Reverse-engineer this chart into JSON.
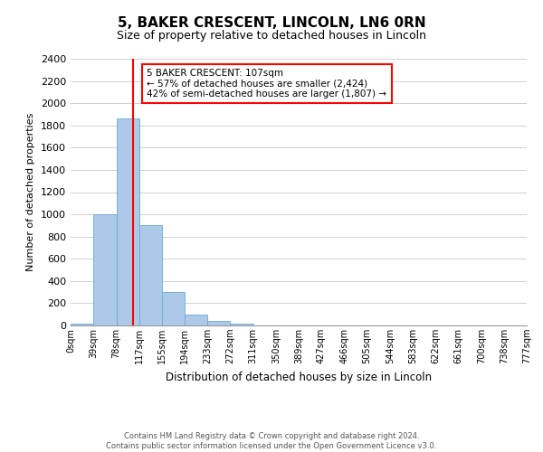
{
  "title": "5, BAKER CRESCENT, LINCOLN, LN6 0RN",
  "subtitle": "Size of property relative to detached houses in Lincoln",
  "bar_heights": [
    20,
    1000,
    1860,
    900,
    300,
    100,
    40,
    20,
    0,
    0,
    0,
    0,
    0,
    0,
    0,
    0,
    0,
    0,
    0,
    0
  ],
  "bin_edges": [
    0,
    39,
    78,
    117,
    155,
    194,
    233,
    272,
    311,
    350,
    389,
    427,
    466,
    505,
    544,
    583,
    622,
    661,
    700,
    738,
    777
  ],
  "bin_labels": [
    "0sqm",
    "39sqm",
    "78sqm",
    "117sqm",
    "155sqm",
    "194sqm",
    "233sqm",
    "272sqm",
    "311sqm",
    "350sqm",
    "389sqm",
    "427sqm",
    "466sqm",
    "505sqm",
    "544sqm",
    "583sqm",
    "622sqm",
    "661sqm",
    "700sqm",
    "738sqm",
    "777sqm"
  ],
  "bar_color": "#adc9e8",
  "bar_edge_color": "#6aaad4",
  "property_line_x": 107,
  "property_line_color": "red",
  "ylabel": "Number of detached properties",
  "xlabel": "Distribution of detached houses by size in Lincoln",
  "ylim": [
    0,
    2400
  ],
  "yticks": [
    0,
    200,
    400,
    600,
    800,
    1000,
    1200,
    1400,
    1600,
    1800,
    2000,
    2200,
    2400
  ],
  "annotation_title": "5 BAKER CRESCENT: 107sqm",
  "annotation_line1": "← 57% of detached houses are smaller (2,424)",
  "annotation_line2": "42% of semi-detached houses are larger (1,807) →",
  "annotation_box_color": "#ffffff",
  "annotation_box_edge_color": "red",
  "footer1": "Contains HM Land Registry data © Crown copyright and database right 2024.",
  "footer2": "Contains public sector information licensed under the Open Government Licence v3.0.",
  "background_color": "#ffffff",
  "grid_color": "#d0d0d0",
  "title_fontsize": 11,
  "subtitle_fontsize": 9,
  "ylabel_fontsize": 8,
  "xlabel_fontsize": 8.5,
  "ytick_fontsize": 8,
  "xtick_fontsize": 7,
  "footer_fontsize": 6,
  "annot_fontsize": 7.5
}
